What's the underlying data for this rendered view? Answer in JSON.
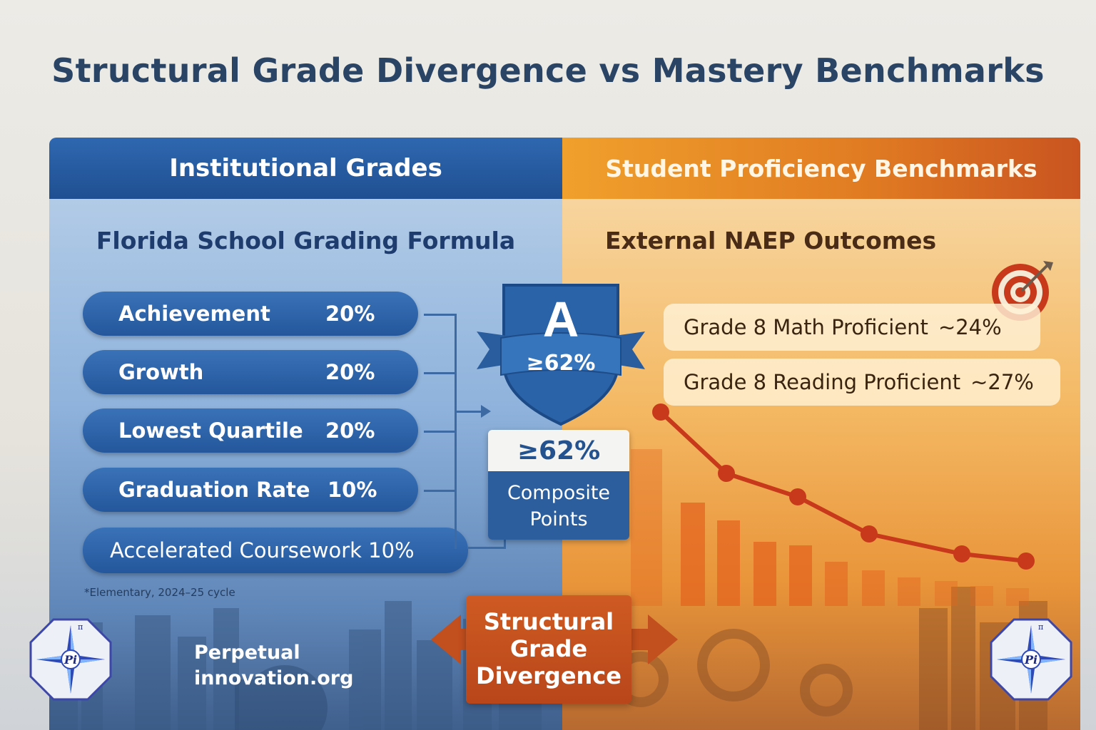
{
  "title": "Structural Grade Divergence vs Mastery Benchmarks",
  "left_panel": {
    "header": "Institutional Grades",
    "subtitle": "Florida School Grading Formula",
    "components": [
      {
        "label": "Achievement",
        "weight": "20%"
      },
      {
        "label": "Growth",
        "weight": "20%"
      },
      {
        "label": "Lowest Quartile",
        "weight": "20%"
      },
      {
        "label": "Graduation Rate",
        "weight": "10%"
      }
    ],
    "accelerated": "Accelerated Coursework 10%",
    "footnote": "*Elementary, 2024–25 cycle"
  },
  "grade_badge": {
    "letter": "A",
    "threshold": "≥62%"
  },
  "composite": {
    "value": "≥62%",
    "label_line1": "Composite",
    "label_line2": "Points"
  },
  "right_panel": {
    "header": "Student Proficiency Benchmarks",
    "subtitle": "External NAEP Outcomes",
    "outcomes": [
      {
        "label": "Grade 8 Math Proficient",
        "value": "~24%"
      },
      {
        "label": "Grade 8 Reading Proficient",
        "value": "~27%"
      }
    ]
  },
  "divergence": {
    "line1": "Structural",
    "line2": "Grade",
    "line3": "Divergence"
  },
  "organization": {
    "line1": "Perpetual",
    "line2": "innovation.org",
    "logo_text": "Pi",
    "logo_mark": "π"
  },
  "colors": {
    "institutional_blue": "#24579c",
    "benchmark_orange": "#e07a22",
    "divergence_red": "#c24f1e",
    "title_navy": "#2a4466"
  },
  "icons": [
    "target-icon",
    "compass-logo-icon",
    "double-arrow-icon",
    "shield-icon"
  ]
}
